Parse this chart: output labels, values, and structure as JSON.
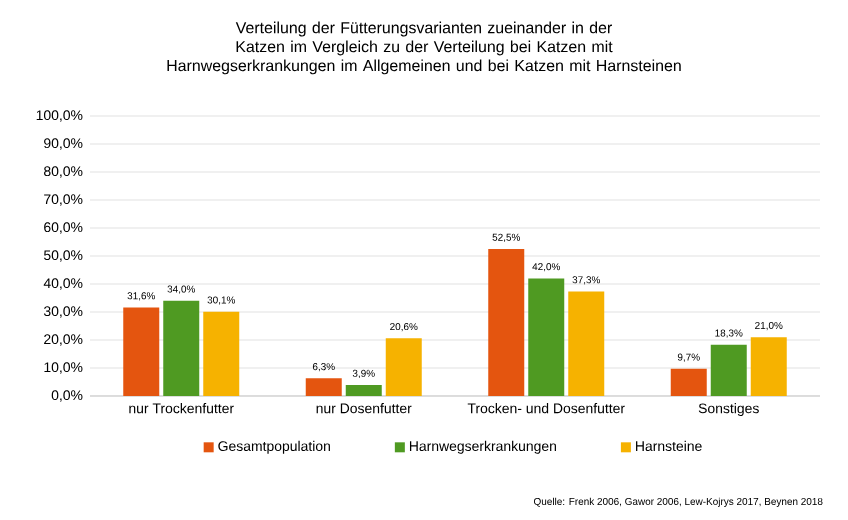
{
  "chart_data": {
    "type": "bar",
    "title": "Verteilung der Fütterungsvarianten zueinander in der Katzen im Vergleich zu der Verteilung bei Katzen mit Harnwegserkrankungen im Allgemeinen und bei Katzen mit Harnsteinen",
    "categories": [
      "nur Trockenfutter",
      "nur Dosenfutter",
      "Trocken- und Dosenfutter",
      "Sonstiges"
    ],
    "series": [
      {
        "name": "Gesamtpopulation",
        "color": "#e4550f",
        "values": [
          31.6,
          6.3,
          52.5,
          9.7
        ],
        "value_labels": [
          "31,6%",
          "6,3%",
          "52,5%",
          "9,7%"
        ]
      },
      {
        "name": "Harnwegserkrankungen",
        "color": "#4f9a22",
        "values": [
          34.0,
          3.9,
          42.0,
          18.3
        ],
        "value_labels": [
          "34,0%",
          "3,9%",
          "42,0%",
          "18,3%"
        ]
      },
      {
        "name": "Harnsteine",
        "color": "#f6b200",
        "values": [
          30.1,
          20.6,
          37.3,
          21.0
        ],
        "value_labels": [
          "30,1%",
          "20,6%",
          "37,3%",
          "21,0%"
        ]
      }
    ],
    "ylim": [
      0,
      100
    ],
    "yticks": [
      {
        "value": 0,
        "label": "0,0%"
      },
      {
        "value": 10,
        "label": "10,0%"
      },
      {
        "value": 20,
        "label": "20,0%"
      },
      {
        "value": 30,
        "label": "30,0%"
      },
      {
        "value": 40,
        "label": "40,0%"
      },
      {
        "value": 50,
        "label": "50,0%"
      },
      {
        "value": 60,
        "label": "60,0%"
      },
      {
        "value": 70,
        "label": "70,0%"
      },
      {
        "value": 80,
        "label": "80,0%"
      },
      {
        "value": 90,
        "label": "90,0%"
      },
      {
        "value": 100,
        "label": "100,0%"
      }
    ],
    "grid": "y",
    "legend": "bottom",
    "annotations": [
      "Quelle: Frenk 2006, Gawor 2006, Lew-Kojrys 2017, Beynen 2018"
    ]
  }
}
